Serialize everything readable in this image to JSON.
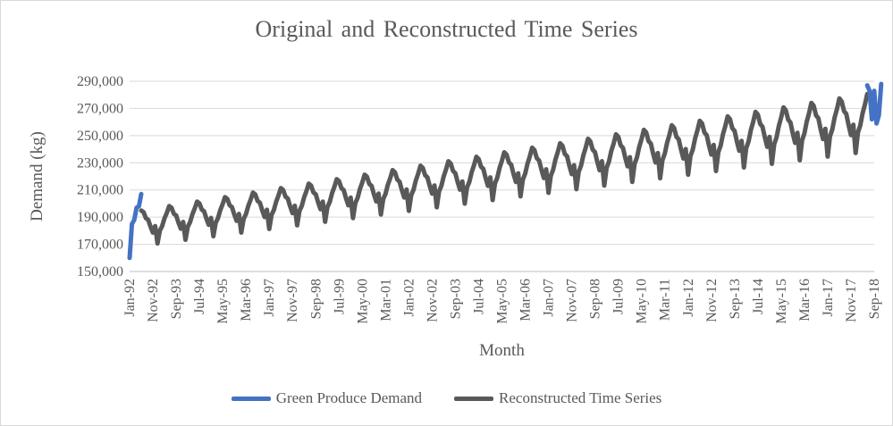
{
  "chart_data": {
    "type": "line",
    "title": "Original and Reconstructed Time Series",
    "xlabel": "Month",
    "ylabel": "Demand (kg)",
    "ylim": [
      150000,
      290000
    ],
    "y_ticks": [
      "290,000",
      "270,000",
      "250,000",
      "230,000",
      "210,000",
      "190,000",
      "170,000",
      "150,000"
    ],
    "x_start": "Jan-92",
    "x_tick_interval_months": 10,
    "x_ticks": [
      "Jan-92",
      "Nov-92",
      "Sep-93",
      "Jul-94",
      "May-95",
      "Mar-96",
      "Jan-97",
      "Nov-97",
      "Sep-98",
      "Jul-99",
      "May-00",
      "Mar-01",
      "Jan-02",
      "Nov-02",
      "Sep-03",
      "Jul-04",
      "May-05",
      "Mar-06",
      "Jan-07",
      "Nov-07",
      "Sep-08",
      "Jul-09",
      "May-10",
      "Mar-11",
      "Jan-12",
      "Nov-12",
      "Sep-13",
      "Jul-14",
      "May-15",
      "Mar-16",
      "Jan-17",
      "Nov-17",
      "Sep-18"
    ],
    "grid": "horizontal",
    "legend_position": "bottom",
    "series": [
      {
        "name": "Green Produce Demand",
        "color": "#4472c4",
        "segments": [
          {
            "start": "Jan-92",
            "values": [
              160000,
              185000,
              188000,
              197000,
              198000,
              207000
            ]
          },
          {
            "start": "Jun-18",
            "values": [
              287000,
              283000,
              262000,
              283000,
              259000,
              265000,
              288000
            ]
          }
        ]
      },
      {
        "name": "Reconstructed Time Series",
        "color": "#595959",
        "trend_start": 183000,
        "trend_end": 264000,
        "seasonal_offsets": [
          -20000,
          -8000,
          -4000,
          3000,
          8000,
          14000,
          12000,
          6000,
          4000,
          -3000,
          -9000,
          -3000
        ],
        "start_index": 5,
        "end_index": 318
      }
    ]
  }
}
